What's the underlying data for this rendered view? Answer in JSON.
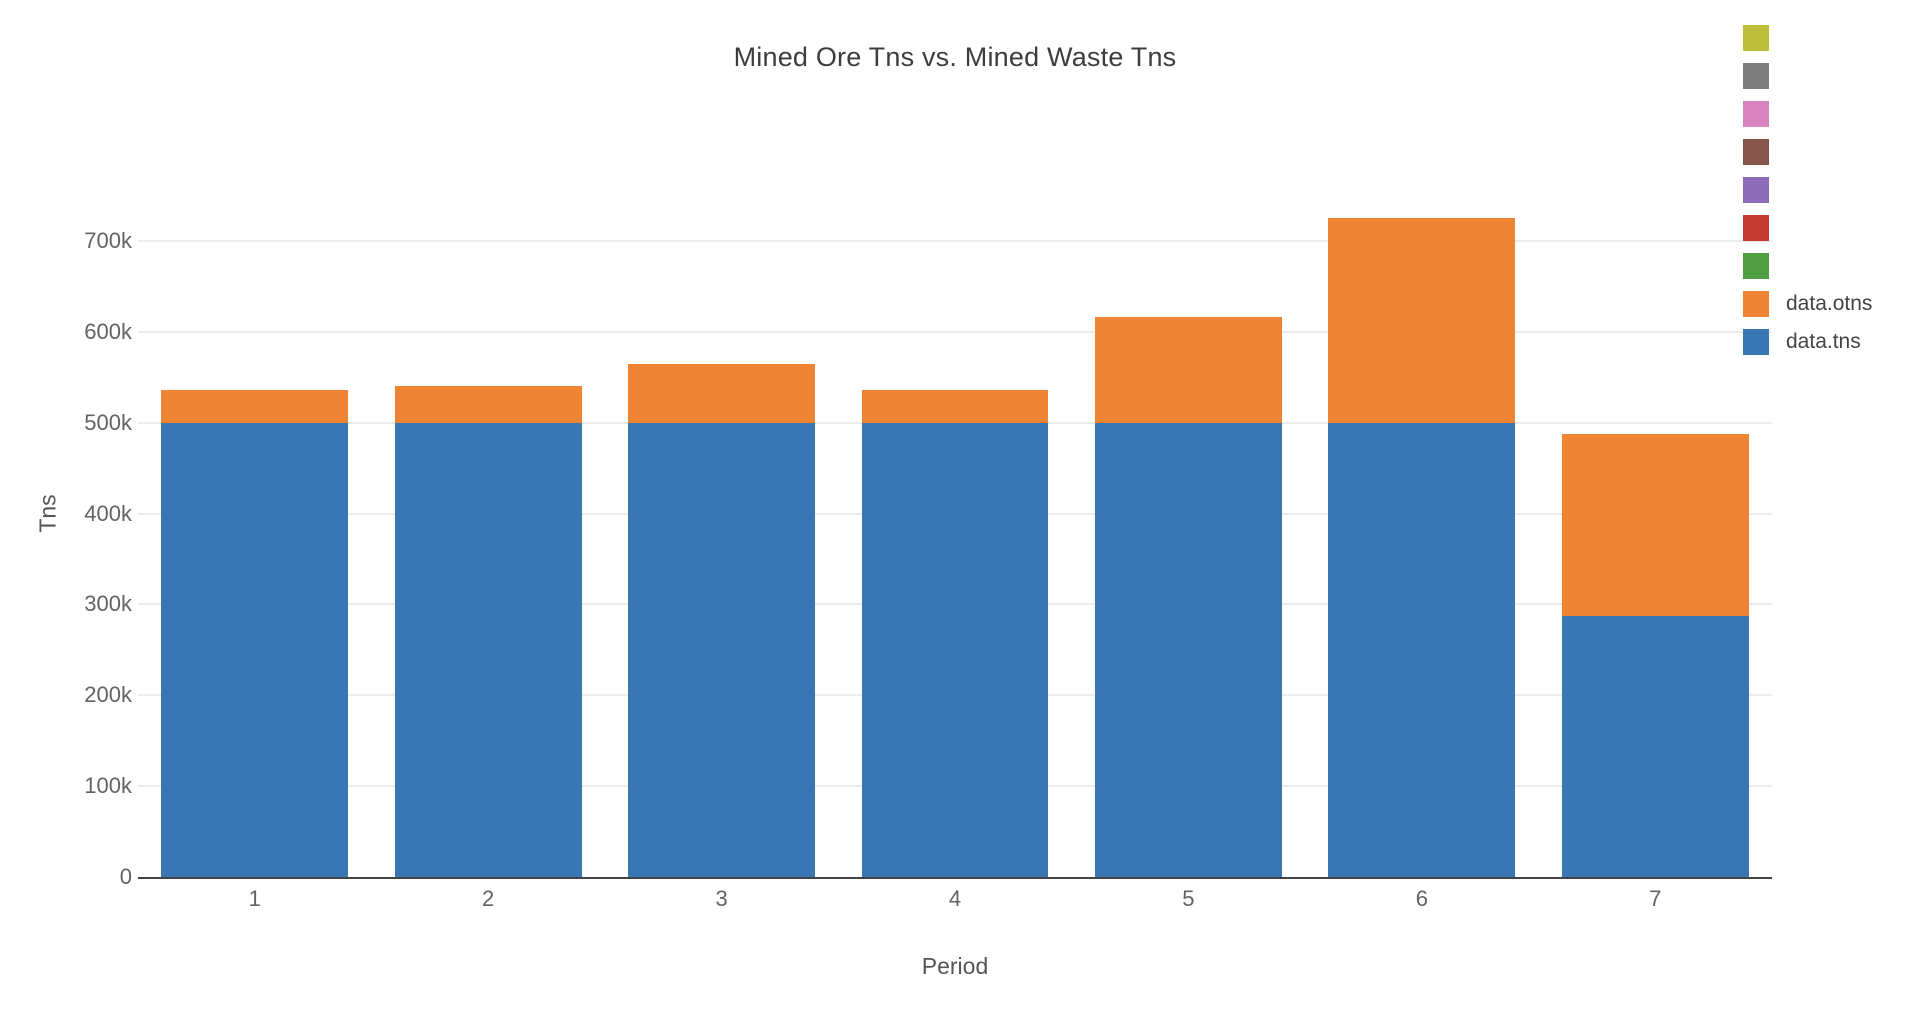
{
  "title": "Mined Ore Tns vs. Mined Waste Tns",
  "axes": {
    "x_title": "Period",
    "y_title": "Tns",
    "x_tick_labels": [
      "1",
      "2",
      "3",
      "4",
      "5",
      "6",
      "7"
    ],
    "y_tick_labels": [
      "0",
      "100k",
      "200k",
      "300k",
      "400k",
      "500k",
      "600k",
      "700k"
    ]
  },
  "legend": {
    "items": [
      {
        "label": "",
        "color": "#bcbd39"
      },
      {
        "label": "",
        "color": "#7d7d7d"
      },
      {
        "label": "",
        "color": "#d783bf"
      },
      {
        "label": "",
        "color": "#86564a"
      },
      {
        "label": "",
        "color": "#8c6bb8"
      },
      {
        "label": "",
        "color": "#c43a32"
      },
      {
        "label": "",
        "color": "#509e41"
      },
      {
        "label": "data.otns",
        "color": "#ef8534"
      },
      {
        "label": "data.tns",
        "color": "#3876b4"
      }
    ]
  },
  "chart_data": {
    "type": "bar",
    "mode": "stacked",
    "title": "Mined Ore Tns vs. Mined Waste Tns",
    "xlabel": "Period",
    "ylabel": "Tns",
    "categories": [
      "1",
      "2",
      "3",
      "4",
      "5",
      "6",
      "7"
    ],
    "series": [
      {
        "name": "data.tns",
        "color": "#3876b4",
        "values": [
          500000,
          500000,
          500000,
          500000,
          500000,
          500000,
          287000
        ]
      },
      {
        "name": "data.otns",
        "color": "#ef8534",
        "values": [
          36000,
          40000,
          65000,
          36000,
          116000,
          225000,
          201000
        ]
      }
    ],
    "stack_totals": [
      536000,
      540000,
      565000,
      536000,
      616000,
      725000,
      488000
    ],
    "ylim": [
      0,
      800000
    ],
    "ytick_values": [
      0,
      100000,
      200000,
      300000,
      400000,
      500000,
      600000,
      700000
    ],
    "ytick_labels": [
      "0",
      "100k",
      "200k",
      "300k",
      "400k",
      "500k",
      "600k",
      "700k"
    ],
    "grid": true,
    "legend_position": "top-right",
    "bar_width_fraction": 0.8
  },
  "colors": {
    "background": "#ffffff",
    "gridline": "#ececec",
    "axis_line": "#444444",
    "tick_text": "#636363",
    "title_text": "#3d3d3d",
    "legend_text": "#444444"
  }
}
